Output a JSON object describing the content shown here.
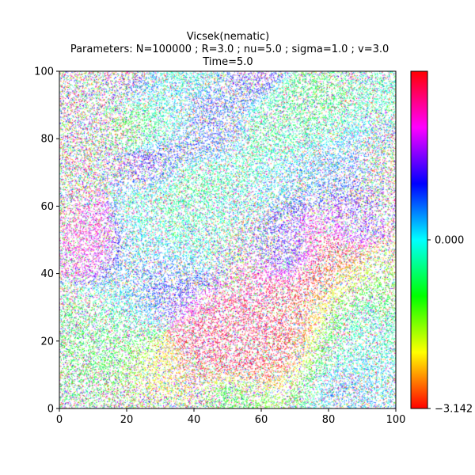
{
  "chart_data": {
    "type": "scatter",
    "title_lines": [
      "Vicsek(nematic)",
      " Parameters: N=100000 ; R=3.0 ; nu=5.0 ; sigma=1.0 ; v=3.0",
      "Time=5.0"
    ],
    "xlabel": "",
    "ylabel": "",
    "xlim": [
      0,
      100
    ],
    "ylim": [
      0,
      100
    ],
    "x_ticks": [
      0,
      20,
      40,
      60,
      80,
      100
    ],
    "y_ticks": [
      0,
      20,
      40,
      60,
      80,
      100
    ],
    "x_tick_labels": [
      "0",
      "20",
      "40",
      "60",
      "80",
      "100"
    ],
    "y_tick_labels": [
      "0",
      "20",
      "40",
      "60",
      "80",
      "100"
    ],
    "grid": false,
    "colormap": "hsv",
    "color_range": [
      -3.142,
      3.142
    ],
    "colorbar": {
      "ticks": [
        0.0,
        -3.142
      ],
      "tick_labels": [
        "0.000",
        "−3.142"
      ]
    },
    "n_particles": 100000,
    "description": "Particles scattered uniformly over the 100x100 domain, each colored by its orientation angle; loose same-colored clusters visible."
  }
}
